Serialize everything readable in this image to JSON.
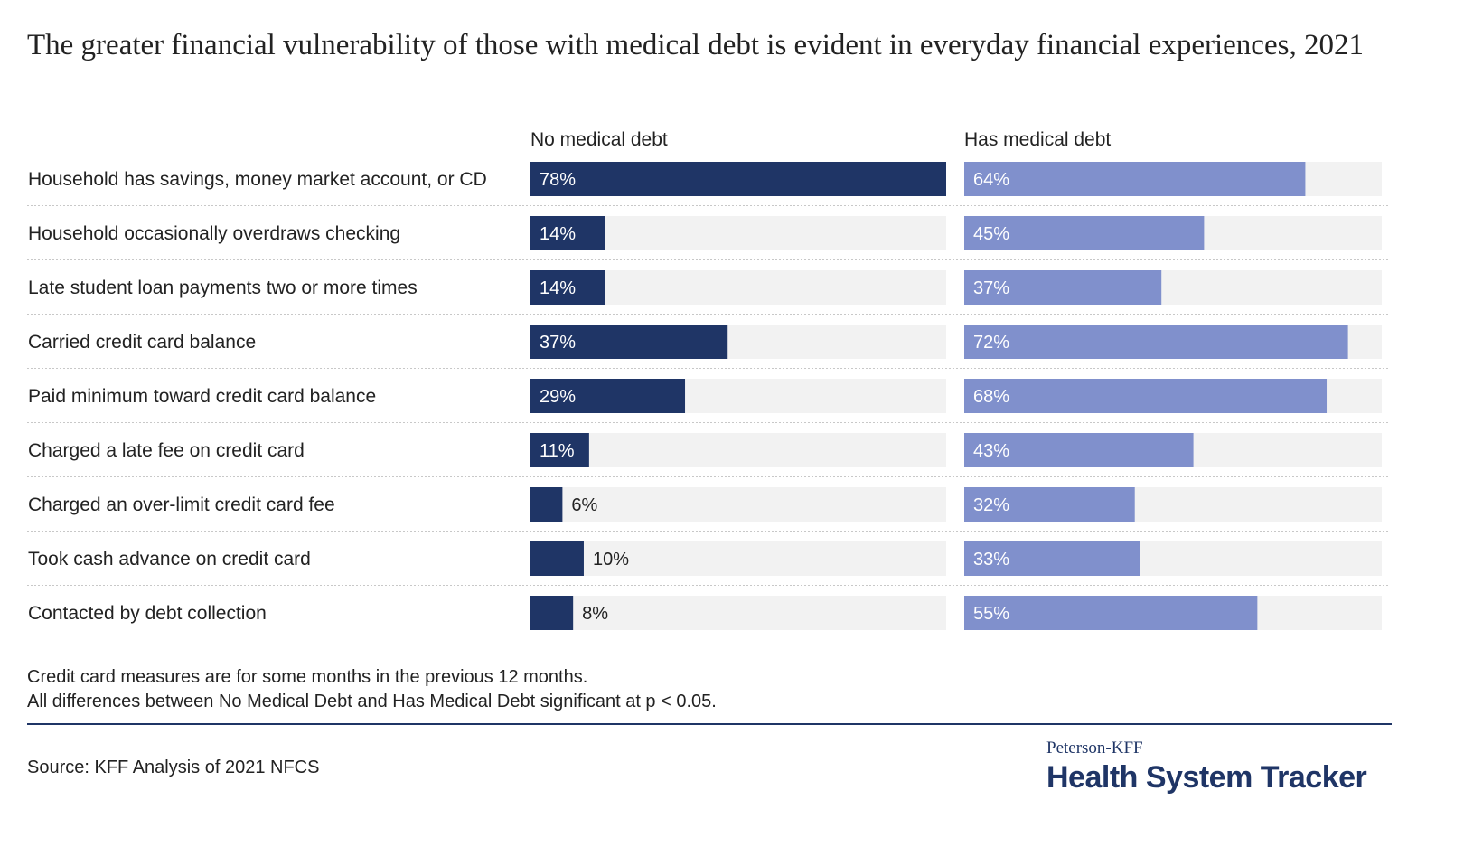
{
  "title": "The greater financial vulnerability of those with medical debt is evident in everyday financial experiences, 2021",
  "footnotes": [
    "Credit card measures are for some months in the previous 12 months.",
    "All differences between No Medical Debt and Has Medical Debt significant at p < 0.05."
  ],
  "source": "Source: KFF Analysis of 2021 NFCS",
  "logo": {
    "top": "Peterson-KFF",
    "main": "Health System Tracker"
  },
  "colors": {
    "no_debt": "#1f3566",
    "has_debt": "#8090cc",
    "track": "#f2f2f2"
  },
  "chart_data": {
    "type": "bar",
    "orientation": "horizontal",
    "unit": "%",
    "xlim": [
      0,
      78
    ],
    "categories": [
      "Household has savings, money market account, or CD",
      "Household occasionally overdraws checking",
      "Late student loan payments two or more times",
      "Carried credit card balance",
      "Paid minimum toward credit card balance",
      "Charged a late fee on credit card",
      "Charged an over-limit credit card fee",
      "Took cash advance on credit card",
      "Contacted by debt collection"
    ],
    "series": [
      {
        "name": "No medical debt",
        "values": [
          78,
          14,
          14,
          37,
          29,
          11,
          6,
          10,
          8
        ],
        "labels": [
          "78%",
          "14%",
          "14%",
          "37%",
          "29%",
          "11%",
          "6%",
          "10%",
          "8%"
        ]
      },
      {
        "name": "Has medical debt",
        "values": [
          64,
          45,
          37,
          72,
          68,
          43,
          32,
          33,
          55
        ],
        "labels": [
          "64%",
          "45%",
          "37%",
          "72%",
          "68%",
          "43%",
          "32%",
          "33%",
          "55%"
        ]
      }
    ]
  }
}
